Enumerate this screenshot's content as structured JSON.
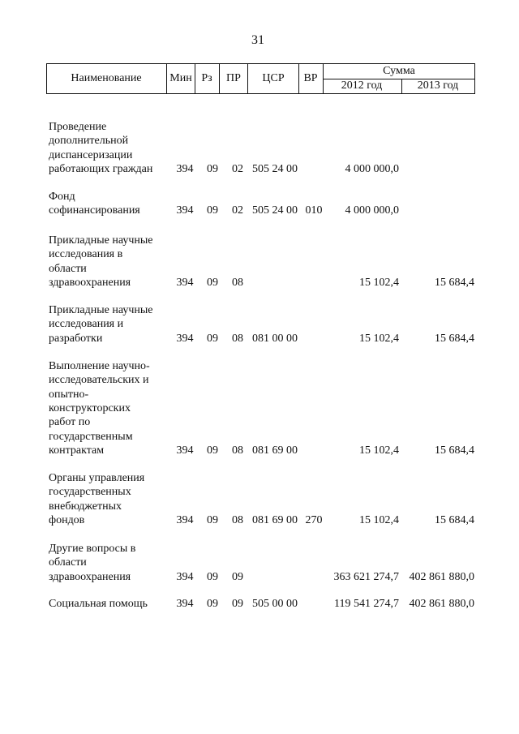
{
  "page_number": "31",
  "table": {
    "header": {
      "name": "Наименование",
      "min": "Мин",
      "rz": "Рз",
      "pr": "ПР",
      "csr": "ЦСР",
      "vr": "ВР",
      "sum": "Сумма",
      "y2012": "2012 год",
      "y2013": "2013 год"
    },
    "rows": [
      {
        "name": [
          "Проведение",
          "дополнительной",
          "диспансеризации",
          "работающих граждан"
        ],
        "min": "394",
        "rz": "09",
        "pr": "02",
        "csr": "505 24 00",
        "s2012": "4 000 000,0"
      },
      {
        "name": [
          "Фонд",
          "софинансирования"
        ],
        "min": "394",
        "rz": "09",
        "pr": "02",
        "csr": "505 24 00",
        "vr": "010",
        "s2012": "4 000 000,0"
      },
      {
        "name": [
          "Прикладные научные",
          "исследования в",
          "области",
          "здравоохранения"
        ],
        "min": "394",
        "rz": "09",
        "pr": "08",
        "s2012": "15 102,4",
        "s2013": "15 684,4"
      },
      {
        "name": [
          "Прикладные научные",
          "исследования и",
          "разработки"
        ],
        "min": "394",
        "rz": "09",
        "pr": "08",
        "csr": "081 00 00",
        "s2012": "15 102,4",
        "s2013": "15 684,4"
      },
      {
        "name": [
          "Выполнение научно-",
          "исследовательских и",
          "опытно-",
          "конструкторских",
          "работ по",
          "государственным",
          "контрактам"
        ],
        "min": "394",
        "rz": "09",
        "pr": "08",
        "csr": "081 69 00",
        "s2012": "15 102,4",
        "s2013": "15 684,4"
      },
      {
        "name": [
          "Органы управления",
          "государственных",
          "внебюджетных",
          "фондов"
        ],
        "min": "394",
        "rz": "09",
        "pr": "08",
        "csr": "081 69 00",
        "vr": "270",
        "s2012": "15 102,4",
        "s2013": "15 684,4"
      },
      {
        "name": [
          "Другие вопросы в",
          "области",
          "здравоохранения"
        ],
        "min": "394",
        "rz": "09",
        "pr": "09",
        "s2012": "363 621 274,7",
        "s2013": "402 861 880,0"
      },
      {
        "name": [
          "Социальная помощь"
        ],
        "min": "394",
        "rz": "09",
        "pr": "09",
        "csr": "505 00 00",
        "s2012": "119 541 274,7",
        "s2013": "402 861 880,0"
      }
    ]
  }
}
